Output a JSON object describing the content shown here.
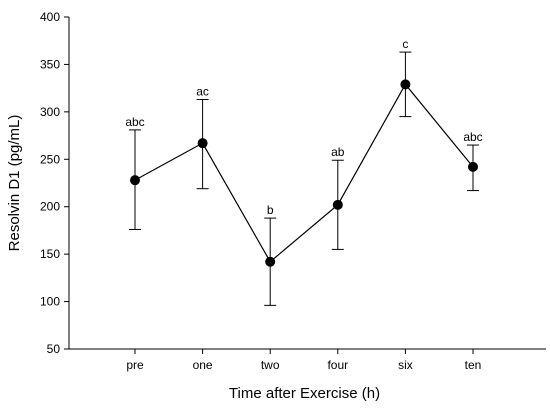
{
  "chart_data": {
    "type": "line",
    "title": "",
    "xlabel": "Time after Exercise (h)",
    "ylabel": "Resolvin D1 (pg/mL)",
    "categories": [
      "pre",
      "one",
      "two",
      "four",
      "six",
      "ten"
    ],
    "ylim": [
      50,
      400
    ],
    "yticks": [
      50,
      100,
      150,
      200,
      250,
      300,
      350,
      400
    ],
    "grid": false,
    "legend": "none",
    "series": [
      {
        "values": [
          228,
          267,
          142,
          202,
          329,
          242
        ],
        "error_low": [
          176,
          219,
          96,
          155,
          295,
          217
        ],
        "error_high": [
          281,
          313,
          188,
          249,
          363,
          265
        ],
        "significance_labels": [
          "abc",
          "ac",
          "b",
          "ab",
          "c",
          "abc"
        ]
      }
    ],
    "colors": {
      "line": "#000000",
      "marker": "#000000"
    }
  }
}
